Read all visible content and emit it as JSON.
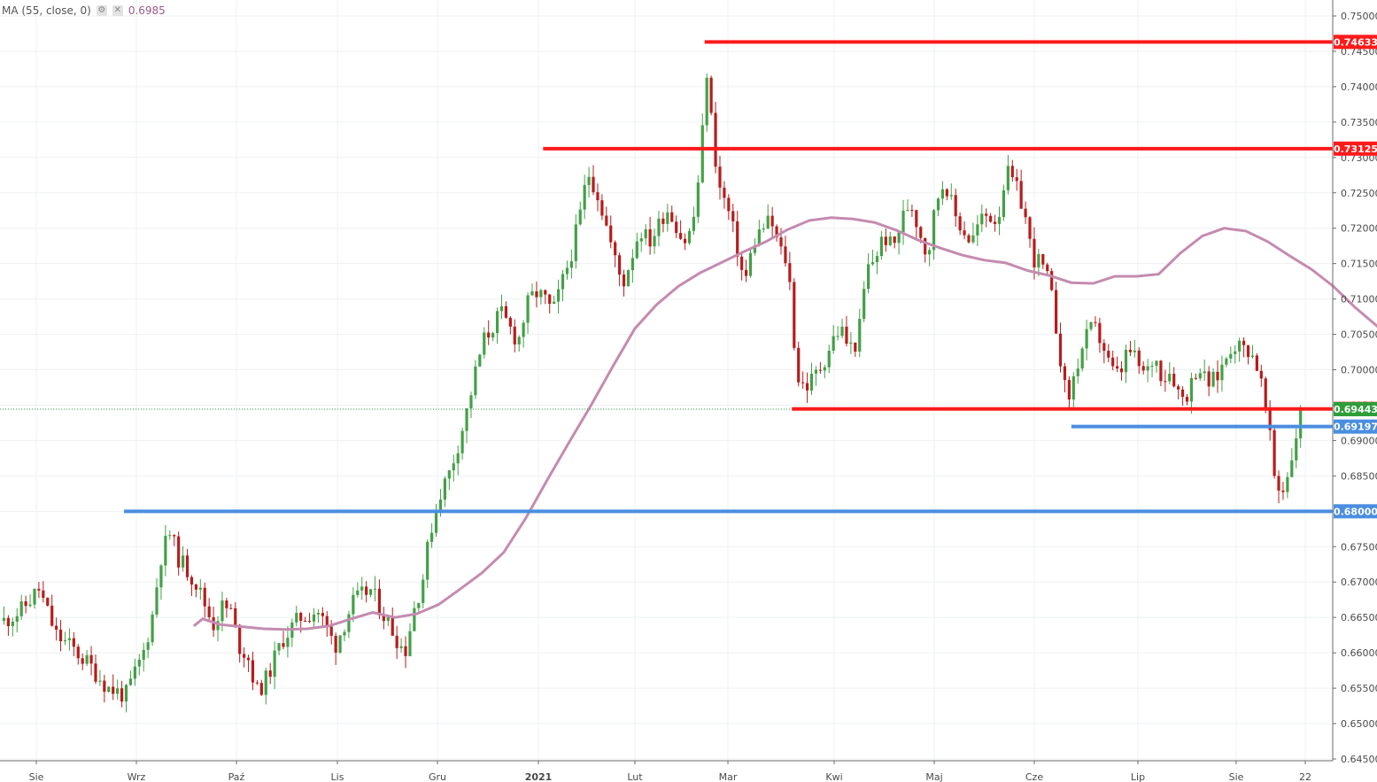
{
  "legend": {
    "label": "MA (55, close, 0)",
    "value": "0.6985",
    "settings_icon": "gear-icon",
    "close_icon": "close-icon"
  },
  "colors": {
    "bull": "#43a047",
    "bear": "#b71c1c",
    "resistance": "#ff1a1a",
    "support": "#4a8ee0",
    "ma": "#c48bb0",
    "last_price": "#2e9e3a",
    "grid": "#eef1f4",
    "axis": "#6b6b6b"
  },
  "chart_data": {
    "type": "candlestick",
    "title": "",
    "ylim": [
      0.6455,
      0.751
    ],
    "y_ticks": [
      "0.75000",
      "0.74500",
      "0.74000",
      "0.73500",
      "0.73000",
      "0.72500",
      "0.72000",
      "0.71500",
      "0.71000",
      "0.70500",
      "0.70000",
      "0.69500",
      "0.69000",
      "0.68500",
      "0.68000",
      "0.67500",
      "0.67000",
      "0.66500",
      "0.66000",
      "0.65500",
      "0.65000",
      "0.64500"
    ],
    "x_ticks": [
      "Sie",
      "Wrz",
      "Paź",
      "Lis",
      "Gru",
      "2021",
      "Lut",
      "Mar",
      "Kwi",
      "Maj",
      "Cze",
      "Lip",
      "Sie",
      "22"
    ],
    "n_bars": 298,
    "close_path": [
      [
        0,
        0.6645
      ],
      [
        10,
        0.666
      ],
      [
        20,
        0.669
      ],
      [
        30,
        0.6625
      ],
      [
        40,
        0.6605
      ],
      [
        50,
        0.658
      ],
      [
        60,
        0.655
      ],
      [
        70,
        0.654
      ],
      [
        80,
        0.66
      ],
      [
        85,
        0.665
      ],
      [
        90,
        0.6735
      ],
      [
        95,
        0.677
      ],
      [
        100,
        0.6735
      ],
      [
        110,
        0.67
      ],
      [
        120,
        0.664
      ],
      [
        125,
        0.6665
      ],
      [
        130,
        0.666
      ],
      [
        135,
        0.661
      ],
      [
        140,
        0.6595
      ],
      [
        145,
        0.6545
      ],
      [
        150,
        0.656
      ],
      [
        160,
        0.662
      ],
      [
        170,
        0.665
      ],
      [
        180,
        0.666
      ],
      [
        190,
        0.661
      ],
      [
        200,
        0.667
      ],
      [
        210,
        0.669
      ],
      [
        220,
        0.6645
      ],
      [
        230,
        0.66
      ],
      [
        235,
        0.666
      ],
      [
        240,
        0.67
      ],
      [
        245,
        0.6775
      ],
      [
        250,
        0.6825
      ],
      [
        255,
        0.685
      ],
      [
        260,
        0.689
      ],
      [
        265,
        0.6935
      ],
      [
        270,
        0.699
      ],
      [
        275,
        0.704
      ],
      [
        280,
        0.706
      ],
      [
        285,
        0.708
      ],
      [
        290,
        0.706
      ],
      [
        295,
        0.704
      ],
      [
        300,
        0.709
      ],
      [
        305,
        0.711
      ],
      [
        310,
        0.71
      ],
      [
        315,
        0.708
      ],
      [
        320,
        0.712
      ],
      [
        325,
        0.716
      ],
      [
        330,
        0.721
      ],
      [
        335,
        0.728
      ],
      [
        340,
        0.7255
      ],
      [
        345,
        0.721
      ],
      [
        350,
        0.716
      ],
      [
        355,
        0.712
      ],
      [
        360,
        0.716
      ],
      [
        365,
        0.72
      ],
      [
        370,
        0.718
      ],
      [
        375,
        0.72
      ],
      [
        380,
        0.723
      ],
      [
        385,
        0.721
      ],
      [
        390,
        0.718
      ],
      [
        395,
        0.72
      ],
      [
        400,
        0.73
      ],
      [
        403,
        0.743
      ],
      [
        406,
        0.735
      ],
      [
        410,
        0.726
      ],
      [
        415,
        0.723
      ],
      [
        420,
        0.718
      ],
      [
        425,
        0.712
      ],
      [
        430,
        0.718
      ],
      [
        435,
        0.72
      ],
      [
        440,
        0.721
      ],
      [
        445,
        0.717
      ],
      [
        450,
        0.715
      ],
      [
        455,
        0.699
      ],
      [
        460,
        0.6975
      ],
      [
        465,
        0.699
      ],
      [
        470,
        0.701
      ],
      [
        475,
        0.704
      ],
      [
        480,
        0.706
      ],
      [
        485,
        0.703
      ],
      [
        490,
        0.704
      ],
      [
        495,
        0.714
      ],
      [
        500,
        0.716
      ],
      [
        505,
        0.719
      ],
      [
        510,
        0.717
      ],
      [
        515,
        0.721
      ],
      [
        520,
        0.724
      ],
      [
        525,
        0.72
      ],
      [
        530,
        0.716
      ],
      [
        535,
        0.724
      ],
      [
        540,
        0.727
      ],
      [
        545,
        0.722
      ],
      [
        550,
        0.72
      ],
      [
        555,
        0.718
      ],
      [
        560,
        0.721
      ],
      [
        565,
        0.722
      ],
      [
        570,
        0.721
      ],
      [
        575,
        0.728
      ],
      [
        580,
        0.726
      ],
      [
        585,
        0.723
      ],
      [
        590,
        0.716
      ],
      [
        595,
        0.715
      ],
      [
        600,
        0.712
      ],
      [
        605,
        0.704
      ],
      [
        610,
        0.695
      ],
      [
        615,
        0.7
      ],
      [
        620,
        0.704
      ],
      [
        625,
        0.706
      ],
      [
        630,
        0.704
      ],
      [
        635,
        0.7
      ],
      [
        640,
        0.699
      ],
      [
        645,
        0.703
      ],
      [
        650,
        0.701
      ],
      [
        655,
        0.699
      ],
      [
        660,
        0.702
      ],
      [
        665,
        0.699
      ],
      [
        670,
        0.7
      ],
      [
        675,
        0.696
      ],
      [
        680,
        0.697
      ],
      [
        685,
        0.701
      ],
      [
        690,
        0.698
      ],
      [
        695,
        0.6985
      ],
      [
        700,
        0.701
      ],
      [
        705,
        0.704
      ],
      [
        710,
        0.703
      ],
      [
        715,
        0.703
      ],
      [
        720,
        0.7
      ],
      [
        725,
        0.693
      ],
      [
        730,
        0.683
      ],
      [
        735,
        0.6835
      ],
      [
        740,
        0.689
      ],
      [
        744,
        0.6944
      ]
    ],
    "ma_path": [
      [
        44,
        0.6638
      ],
      [
        46,
        0.6648
      ],
      [
        50,
        0.664
      ],
      [
        55,
        0.6637
      ],
      [
        60,
        0.6634
      ],
      [
        65,
        0.6633
      ],
      [
        70,
        0.6634
      ],
      [
        75,
        0.6638
      ],
      [
        80,
        0.6648
      ],
      [
        85,
        0.6657
      ],
      [
        90,
        0.665
      ],
      [
        95,
        0.6655
      ],
      [
        100,
        0.6668
      ],
      [
        105,
        0.669
      ],
      [
        110,
        0.6713
      ],
      [
        115,
        0.6742
      ],
      [
        120,
        0.679
      ],
      [
        125,
        0.6845
      ],
      [
        130,
        0.6898
      ],
      [
        135,
        0.695
      ],
      [
        140,
        0.7005
      ],
      [
        145,
        0.7058
      ],
      [
        150,
        0.7092
      ],
      [
        155,
        0.7118
      ],
      [
        160,
        0.7137
      ],
      [
        165,
        0.7152
      ],
      [
        170,
        0.7167
      ],
      [
        175,
        0.7181
      ],
      [
        180,
        0.7198
      ],
      [
        185,
        0.7211
      ],
      [
        190,
        0.7215
      ],
      [
        195,
        0.7213
      ],
      [
        200,
        0.7208
      ],
      [
        205,
        0.7197
      ],
      [
        210,
        0.7183
      ],
      [
        215,
        0.7172
      ],
      [
        220,
        0.7162
      ],
      [
        225,
        0.7155
      ],
      [
        230,
        0.7151
      ],
      [
        235,
        0.714
      ],
      [
        240,
        0.7133
      ],
      [
        245,
        0.7123
      ],
      [
        250,
        0.7122
      ],
      [
        255,
        0.7132
      ],
      [
        260,
        0.7132
      ],
      [
        265,
        0.7135
      ],
      [
        270,
        0.7165
      ],
      [
        275,
        0.7189
      ],
      [
        280,
        0.72
      ],
      [
        285,
        0.7196
      ],
      [
        290,
        0.7181
      ],
      [
        295,
        0.7161
      ],
      [
        300,
        0.7142
      ],
      [
        305,
        0.7118
      ],
      [
        310,
        0.7088
      ],
      [
        315,
        0.7062
      ],
      [
        320,
        0.7034
      ],
      [
        325,
        0.701
      ],
      [
        330,
        0.6999
      ],
      [
        334,
        0.6988
      ],
      [
        338,
        0.6987
      ]
    ],
    "price_levels": [
      {
        "label": "0.74633",
        "value": 0.74633,
        "color": "resistance",
        "from_bar": 161
      },
      {
        "label": "0.73125",
        "value": 0.73125,
        "color": "resistance",
        "from_bar": 124
      },
      {
        "label": "0.69447",
        "value": 0.69447,
        "color": "resistance",
        "from_bar": 181
      },
      {
        "label": "0.69197",
        "value": 0.69197,
        "color": "support",
        "from_bar": 245
      },
      {
        "label": "0.68000",
        "value": 0.68,
        "color": "support",
        "from_bar": 28
      }
    ],
    "last_price": {
      "label": "0.69443",
      "value": 0.69443
    }
  }
}
